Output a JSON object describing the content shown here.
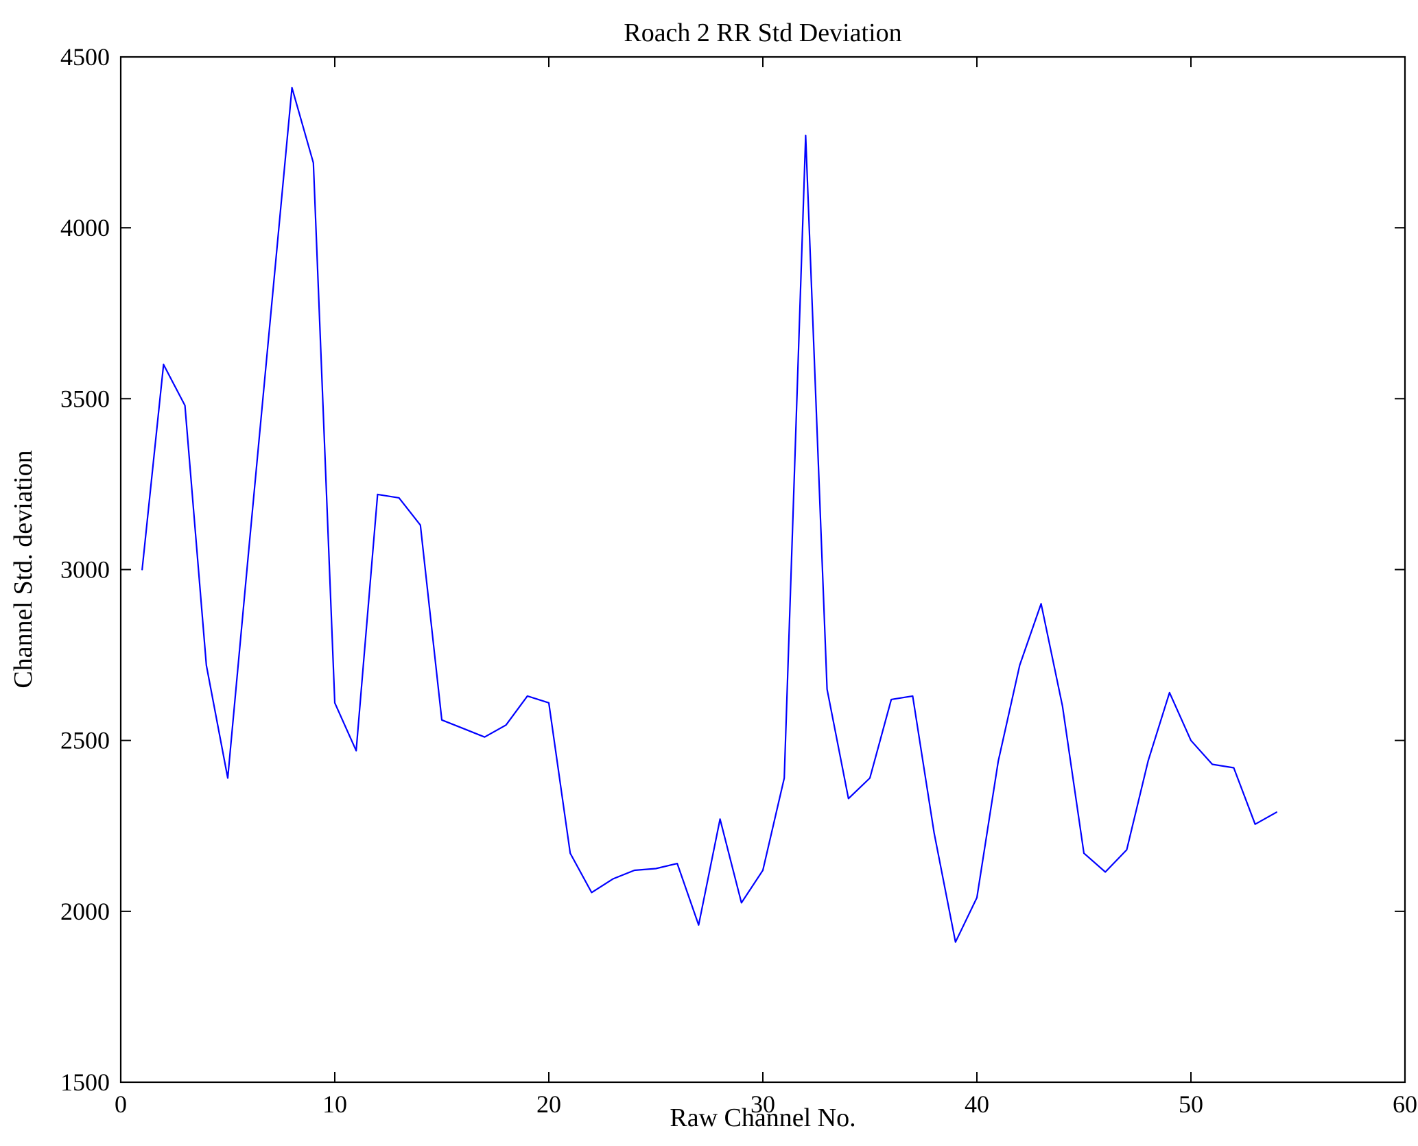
{
  "figure": {
    "title": "Roach 2 RR Std Deviation",
    "xlabel": "Raw Channel No.",
    "ylabel": "Channel Std. deviation"
  },
  "chart_data": {
    "type": "line",
    "title": "Roach 2 RR Std Deviation",
    "xlabel": "Raw Channel No.",
    "ylabel": "Channel Std. deviation",
    "xlim": [
      0,
      60
    ],
    "ylim": [
      1500,
      4500
    ],
    "xticks": [
      0,
      10,
      20,
      30,
      40,
      50,
      60
    ],
    "yticks": [
      1500,
      2000,
      2500,
      3000,
      3500,
      4000,
      4500
    ],
    "grid": false,
    "legend": null,
    "line_color": "#0000ff",
    "axis_color": "#000000",
    "x": [
      1,
      2,
      3,
      4,
      5,
      6,
      7,
      8,
      9,
      10,
      11,
      12,
      13,
      14,
      15,
      16,
      17,
      18,
      19,
      20,
      21,
      22,
      23,
      24,
      25,
      26,
      27,
      28,
      29,
      30,
      31,
      32,
      33,
      34,
      35,
      36,
      37,
      38,
      39,
      40,
      41,
      42,
      43,
      44,
      45,
      46,
      47,
      48,
      49,
      50,
      51,
      52,
      53,
      54
    ],
    "y": [
      3000,
      3600,
      3480,
      2720,
      2390,
      3070,
      3740,
      4410,
      4190,
      2610,
      2470,
      3220,
      3210,
      3130,
      2560,
      2535,
      2510,
      2545,
      2630,
      2610,
      2170,
      2055,
      2095,
      2120,
      2125,
      2140,
      1960,
      2270,
      2025,
      2120,
      2390,
      4270,
      2650,
      2330,
      2390,
      2620,
      2630,
      2230,
      1910,
      2040,
      2440,
      2720,
      2900,
      2600,
      2170,
      2115,
      2180,
      2440,
      2640,
      2500,
      2430,
      2420,
      2255,
      2290
    ]
  }
}
